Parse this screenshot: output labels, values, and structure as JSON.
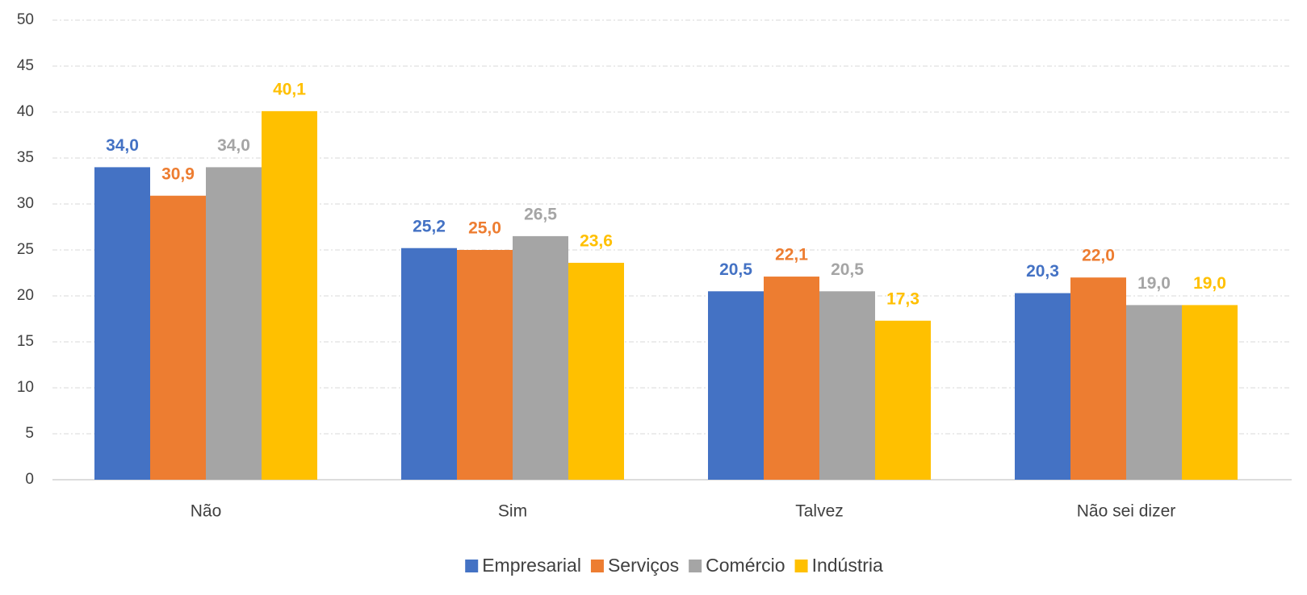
{
  "chart_data": {
    "type": "bar",
    "categories": [
      "Não",
      "Sim",
      "Talvez",
      "Não sei dizer"
    ],
    "series": [
      {
        "name": "Empresarial",
        "color": "#4472c4",
        "values": [
          34.0,
          25.2,
          20.5,
          20.3
        ],
        "value_labels": [
          "34,0",
          "25,2",
          "20,5",
          "20,3"
        ]
      },
      {
        "name": "Serviços",
        "color": "#ed7d31",
        "values": [
          30.9,
          25.0,
          22.1,
          22.0
        ],
        "value_labels": [
          "30,9",
          "25,0",
          "22,1",
          "22,0"
        ]
      },
      {
        "name": "Comércio",
        "color": "#a5a5a5",
        "values": [
          34.0,
          26.5,
          20.5,
          19.0
        ],
        "value_labels": [
          "34,0",
          "26,5",
          "20,5",
          "19,0"
        ]
      },
      {
        "name": "Indústria",
        "color": "#ffc000",
        "values": [
          40.1,
          23.6,
          17.3,
          19.0
        ],
        "value_labels": [
          "40,1",
          "23,6",
          "17,3",
          "19,0"
        ]
      }
    ],
    "ylim": [
      0,
      50
    ],
    "yticks": [
      0,
      5,
      10,
      15,
      20,
      25,
      30,
      35,
      40,
      45,
      50
    ],
    "grid": true,
    "legend": "bottom"
  }
}
